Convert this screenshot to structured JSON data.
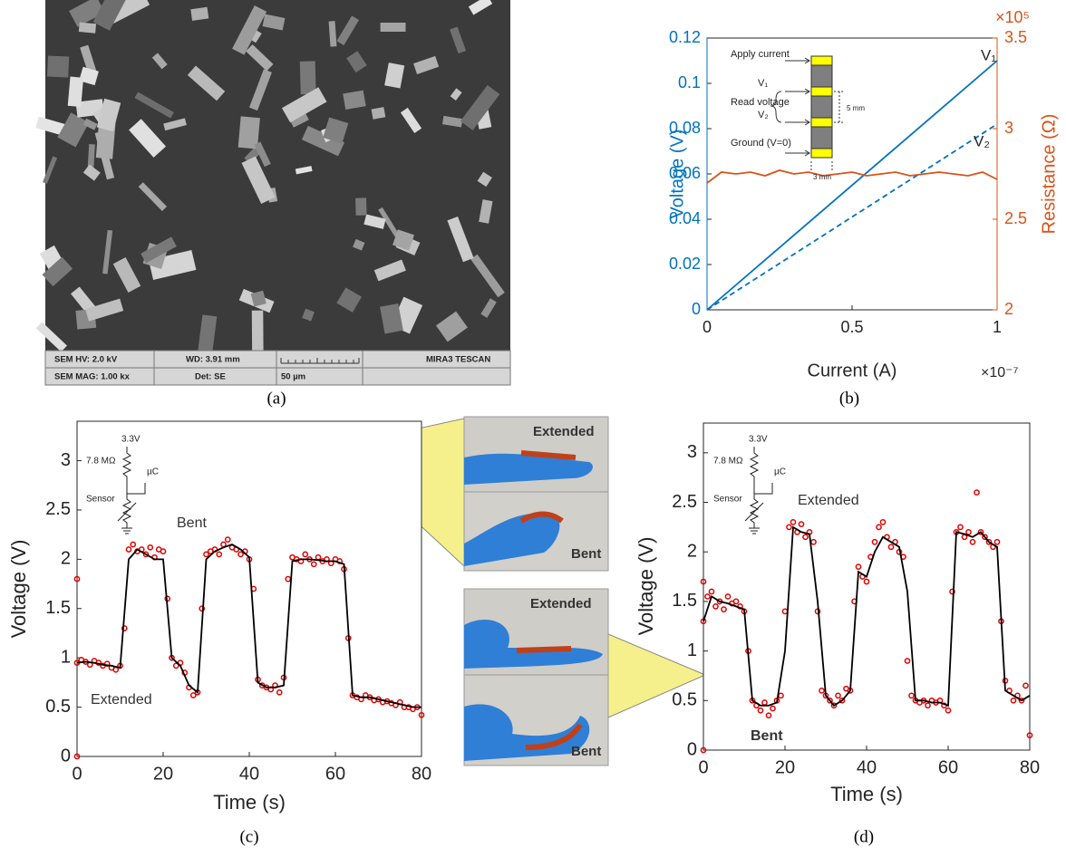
{
  "sem_image": {
    "info": [
      "SEM HV: 2.0 kV",
      "WD: 3.91 mm",
      "MIRA3 TESCAN",
      "SEM MAG: 1.00 kx",
      "Det: SE",
      "50 µm"
    ],
    "caption": "(a)"
  },
  "photos": {
    "labels": [
      "Extended",
      "Bent",
      "Extended",
      "Bent"
    ]
  },
  "chart_data": [
    {
      "type": "line",
      "caption": "(b)",
      "x_label": "Current (A)",
      "y_label": "Voltage (V)",
      "y2_label": "Resistance (Ω)",
      "x_exponent": "×10⁻⁷",
      "y2_exponent": "×10⁵",
      "xlim": [
        0,
        1
      ],
      "xticks": [
        0,
        0.5,
        1
      ],
      "ylim": [
        0,
        0.12
      ],
      "yticks": [
        0,
        0.02,
        0.04,
        0.06,
        0.08,
        0.1,
        0.12
      ],
      "y2lim": [
        2,
        3.5
      ],
      "y2ticks": [
        2,
        2.5,
        3,
        3.5
      ],
      "y_color": "#0072BD",
      "y2_color": "#D95319",
      "inset_labels": [
        "Apply current",
        "V₁",
        "Read voltage",
        "V₂",
        "Ground (V=0)",
        "5 mm",
        "3 mm"
      ],
      "series": [
        {
          "name": "V₁",
          "color": "#0072BD",
          "x": [
            0,
            1
          ],
          "values": [
            0,
            0.11
          ]
        },
        {
          "name": "V₂",
          "color": "#0072BD",
          "dash": true,
          "x": [
            0,
            1
          ],
          "values": [
            0,
            0.082
          ]
        },
        {
          "color": "#D95319",
          "axis": "y2",
          "x": [
            0,
            0.05,
            0.1,
            0.15,
            0.2,
            0.25,
            0.3,
            0.35,
            0.4,
            0.45,
            0.5,
            0.55,
            0.6,
            0.65,
            0.7,
            0.75,
            0.8,
            0.85,
            0.9,
            0.95,
            1
          ],
          "values": [
            2.7,
            2.76,
            2.75,
            2.76,
            2.74,
            2.77,
            2.75,
            2.76,
            2.74,
            2.75,
            2.76,
            2.74,
            2.75,
            2.76,
            2.74,
            2.75,
            2.76,
            2.75,
            2.74,
            2.76,
            2.72
          ]
        }
      ]
    },
    {
      "type": "line",
      "caption": "(c)",
      "x_label": "Time (s)",
      "y_label": "Voltage (V)",
      "xlim": [
        0,
        80
      ],
      "xticks": [
        0,
        20,
        40,
        60,
        80
      ],
      "ylim": [
        0,
        3.4
      ],
      "yticks": [
        0,
        0.5,
        1,
        1.5,
        2,
        2.5,
        3
      ],
      "annotations": [
        "Bent",
        "Extended"
      ],
      "circuit_labels": [
        "3.3V",
        "7.8 MΩ",
        "µC",
        "Sensor"
      ],
      "series": [
        {
          "color": "#e00000",
          "marker": true,
          "x": [
            0,
            0,
            0,
            1,
            2,
            3,
            4,
            5,
            6,
            7,
            8,
            9,
            10,
            11,
            12,
            13,
            14,
            15,
            16,
            17,
            18,
            19,
            20,
            21,
            22,
            23,
            24,
            25,
            26,
            27,
            28,
            29,
            30,
            31,
            32,
            33,
            34,
            35,
            36,
            37,
            38,
            39,
            40,
            41,
            42,
            43,
            44,
            45,
            46,
            47,
            48,
            49,
            50,
            51,
            52,
            53,
            54,
            55,
            56,
            57,
            58,
            59,
            60,
            61,
            62,
            63,
            64,
            65,
            66,
            67,
            68,
            69,
            70,
            71,
            72,
            73,
            74,
            75,
            76,
            77,
            78,
            79,
            80
          ],
          "values": [
            0,
            1.8,
            0.95,
            0.98,
            0.96,
            0.93,
            0.97,
            0.95,
            0.92,
            0.94,
            0.9,
            0.88,
            0.92,
            1.3,
            2.1,
            2.15,
            2.08,
            2.1,
            2.05,
            2.12,
            2.02,
            2.1,
            2.08,
            1.6,
            1.0,
            0.92,
            0.95,
            0.85,
            0.7,
            0.62,
            0.65,
            1.5,
            2.05,
            2.08,
            2.1,
            2.05,
            2.15,
            2.2,
            2.12,
            2.1,
            2.05,
            2.08,
            2.0,
            1.7,
            0.78,
            0.72,
            0.7,
            0.68,
            0.72,
            0.65,
            0.8,
            1.8,
            2.02,
            2.0,
            1.98,
            2.05,
            2.0,
            1.95,
            2.02,
            1.98,
            2.0,
            1.96,
            2.0,
            1.98,
            1.9,
            1.2,
            0.62,
            0.6,
            0.58,
            0.62,
            0.6,
            0.57,
            0.58,
            0.55,
            0.56,
            0.54,
            0.52,
            0.55,
            0.5,
            0.5,
            0.48,
            0.5,
            0.42
          ]
        },
        {
          "color": "#000000",
          "x": [
            0,
            2,
            4,
            6,
            8,
            10,
            12,
            14,
            16,
            18,
            20,
            22,
            24,
            26,
            28,
            30,
            32,
            34,
            36,
            38,
            40,
            42,
            44,
            46,
            48,
            50,
            52,
            54,
            56,
            58,
            60,
            62,
            64,
            66,
            68,
            70,
            72,
            74,
            76,
            78,
            80
          ],
          "values": [
            0.95,
            0.96,
            0.95,
            0.93,
            0.92,
            0.9,
            2.0,
            2.1,
            2.05,
            2.0,
            2.0,
            1.0,
            0.92,
            0.72,
            0.65,
            2.0,
            2.08,
            2.12,
            2.15,
            2.1,
            2.02,
            0.75,
            0.7,
            0.7,
            0.72,
            1.98,
            2.0,
            2.0,
            1.99,
            1.98,
            1.98,
            1.95,
            0.62,
            0.6,
            0.6,
            0.58,
            0.56,
            0.54,
            0.52,
            0.5,
            0.5
          ]
        }
      ]
    },
    {
      "type": "line",
      "caption": "(d)",
      "x_label": "Time (s)",
      "y_label": "Voltage (V)",
      "xlim": [
        0,
        80
      ],
      "xticks": [
        0,
        20,
        40,
        60,
        80
      ],
      "ylim": [
        0,
        3.3
      ],
      "yticks": [
        0,
        0.5,
        1,
        1.5,
        2,
        2.5,
        3
      ],
      "annotations": [
        "Extended",
        "Bent"
      ],
      "circuit_labels": [
        "3.3V",
        "7.8 MΩ",
        "µC",
        "Sensor"
      ],
      "series": [
        {
          "color": "#e00000",
          "marker": true,
          "x": [
            0,
            0,
            0,
            1,
            2,
            3,
            4,
            5,
            6,
            7,
            8,
            9,
            10,
            11,
            12,
            13,
            14,
            15,
            16,
            17,
            18,
            19,
            20,
            21,
            22,
            23,
            24,
            25,
            26,
            27,
            28,
            29,
            30,
            31,
            32,
            33,
            34,
            35,
            36,
            37,
            38,
            39,
            40,
            41,
            42,
            43,
            44,
            45,
            46,
            47,
            48,
            49,
            50,
            51,
            52,
            53,
            54,
            55,
            56,
            57,
            58,
            59,
            60,
            61,
            62,
            63,
            64,
            65,
            66,
            67,
            68,
            69,
            70,
            71,
            72,
            73,
            74,
            75,
            76,
            77,
            78,
            79,
            80
          ],
          "values": [
            0,
            1.7,
            1.3,
            1.55,
            1.6,
            1.45,
            1.5,
            1.42,
            1.55,
            1.48,
            1.5,
            1.45,
            1.4,
            1.0,
            0.5,
            0.45,
            0.4,
            0.48,
            0.35,
            0.42,
            0.5,
            0.55,
            1.4,
            2.25,
            2.3,
            2.2,
            2.28,
            2.15,
            2.2,
            2.1,
            1.4,
            0.6,
            0.55,
            0.5,
            0.45,
            0.55,
            0.5,
            0.62,
            0.6,
            1.5,
            1.85,
            1.75,
            1.7,
            1.95,
            2.1,
            2.25,
            2.3,
            2.15,
            2.05,
            2.1,
            2.0,
            1.95,
            0.9,
            0.55,
            0.5,
            0.48,
            0.5,
            0.45,
            0.5,
            0.48,
            0.5,
            0.45,
            0.4,
            1.6,
            2.2,
            2.25,
            2.15,
            2.2,
            2.1,
            2.6,
            2.2,
            2.15,
            2.1,
            2.05,
            2.1,
            1.3,
            0.7,
            0.6,
            0.5,
            0.55,
            0.5,
            0.65,
            0.15
          ]
        },
        {
          "color": "#000000",
          "x": [
            0,
            2,
            4,
            6,
            8,
            10,
            12,
            14,
            16,
            18,
            20,
            22,
            24,
            26,
            28,
            30,
            32,
            34,
            36,
            38,
            40,
            42,
            44,
            46,
            48,
            50,
            52,
            54,
            56,
            58,
            60,
            62,
            64,
            66,
            68,
            70,
            72,
            74,
            76,
            78,
            80
          ],
          "values": [
            1.3,
            1.55,
            1.5,
            1.48,
            1.45,
            1.42,
            0.5,
            0.45,
            0.45,
            0.48,
            1.0,
            2.25,
            2.2,
            2.18,
            1.5,
            0.55,
            0.45,
            0.5,
            0.6,
            1.8,
            1.75,
            2.0,
            2.15,
            2.1,
            2.05,
            1.6,
            0.5,
            0.5,
            0.48,
            0.48,
            0.45,
            2.2,
            2.18,
            2.15,
            2.2,
            2.1,
            2.05,
            0.6,
            0.55,
            0.5,
            0.55
          ]
        }
      ]
    }
  ]
}
